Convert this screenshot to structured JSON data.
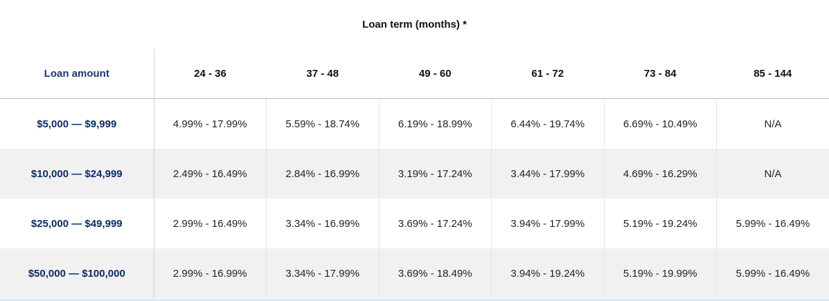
{
  "caption": "Loan term (months) *",
  "table": {
    "amount_header": "Loan amount",
    "term_headers": [
      "24 - 36",
      "37 - 48",
      "49 - 60",
      "61 - 72",
      "73 - 84",
      "85 - 144"
    ],
    "rows": [
      {
        "amount": "$5,000 — $9,999",
        "rates": [
          "4.99% - 17.99%",
          "5.59% - 18.74%",
          "6.19% - 18.99%",
          "6.44% - 19.74%",
          "6.69% - 10.49%",
          "N/A"
        ]
      },
      {
        "amount": "$10,000 — $24,999",
        "rates": [
          "2.49% - 16.49%",
          "2.84% - 16.99%",
          "3.19% - 17.24%",
          "3.44% - 17.99%",
          "4.69% - 16.29%",
          "N/A"
        ]
      },
      {
        "amount": "$25,000 — $49,999",
        "rates": [
          "2.99% - 16.49%",
          "3.34% - 16.99%",
          "3.69% - 17.24%",
          "3.94% - 17.99%",
          "5.19% - 19.24%",
          "5.99% - 16.49%"
        ]
      },
      {
        "amount": "$50,000 — $100,000",
        "rates": [
          "2.99% - 16.99%",
          "3.34% - 17.99%",
          "3.69% - 18.49%",
          "3.94% - 19.24%",
          "5.19% - 19.99%",
          "5.99% - 16.49%"
        ]
      }
    ]
  }
}
